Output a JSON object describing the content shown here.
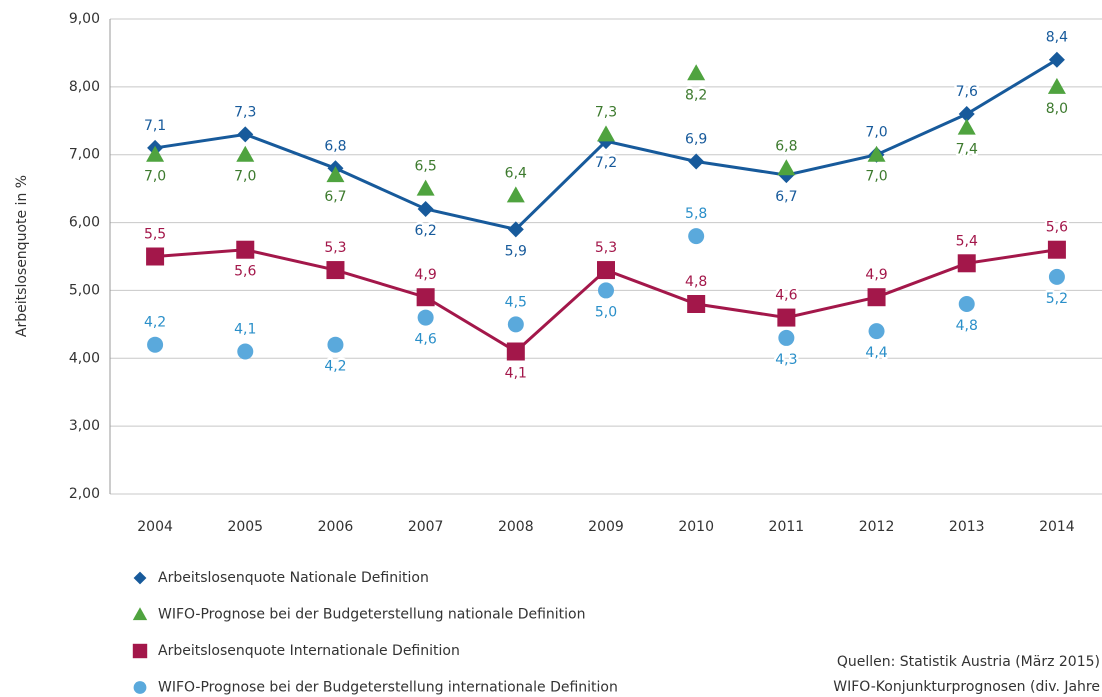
{
  "chart_data": {
    "type": "line",
    "y_label": "Arbeitslosenquote in %",
    "categories": [
      "2004",
      "2005",
      "2006",
      "2007",
      "2008",
      "2009",
      "2010",
      "2011",
      "2012",
      "2013",
      "2014"
    ],
    "ylim": [
      2,
      9
    ],
    "yticks": [
      {
        "value": 2,
        "label": "2,00"
      },
      {
        "value": 3,
        "label": "3,00"
      },
      {
        "value": 4,
        "label": "4,00"
      },
      {
        "value": 5,
        "label": "5,00"
      },
      {
        "value": 6,
        "label": "6,00"
      },
      {
        "value": 7,
        "label": "7,00"
      },
      {
        "value": 8,
        "label": "8,00"
      },
      {
        "value": 9,
        "label": "9,00"
      }
    ],
    "grid": true,
    "series": [
      {
        "name": "Arbeitslosenquote Nationale Definition",
        "color": "#175a9b",
        "label_color": "#175a9b",
        "marker": "diamond",
        "line": true,
        "values": [
          7.1,
          7.3,
          6.8,
          6.2,
          5.9,
          7.2,
          6.9,
          6.7,
          7.0,
          7.6,
          8.4
        ],
        "value_labels": [
          "7,1",
          "7,3",
          "6,8",
          "6,2",
          "5,9",
          "7,2",
          "6,9",
          "6,7",
          "7,0",
          "7,6",
          "8,4"
        ]
      },
      {
        "name": "WIFO-Prognose bei der Budgeterstellung nationale Definition",
        "color": "#4fa33f",
        "label_color": "#3d7a2e",
        "marker": "triangle",
        "line": false,
        "values": [
          7.0,
          7.0,
          6.7,
          6.5,
          6.4,
          7.3,
          8.2,
          6.8,
          7.0,
          7.4,
          8.0
        ],
        "value_labels": [
          "7,0",
          "7,0",
          "6,7",
          "6,5",
          "6,4",
          "7,3",
          "8,2",
          "6,8",
          "7,0",
          "7,4",
          "8,0"
        ]
      },
      {
        "name": "Arbeitslosenquote Internationale Definition",
        "color": "#a3174a",
        "label_color": "#a3174a",
        "marker": "square",
        "line": true,
        "values": [
          5.5,
          5.6,
          5.3,
          4.9,
          4.1,
          5.3,
          4.8,
          4.6,
          4.9,
          5.4,
          5.6
        ],
        "value_labels": [
          "5,5",
          "5,6",
          "5,3",
          "4,9",
          "4,1",
          "5,3",
          "4,8",
          "4,6",
          "4,9",
          "5,4",
          "5,6"
        ]
      },
      {
        "name": "WIFO-Prognose bei der Budgeterstellung internationale Definition",
        "color": "#5aa9dc",
        "label_color": "#2a8fc9",
        "marker": "circle",
        "line": false,
        "values": [
          4.2,
          4.1,
          4.2,
          4.6,
          4.5,
          5.0,
          5.8,
          4.3,
          4.4,
          4.8,
          5.2
        ],
        "value_labels": [
          "4,2",
          "4,1",
          "4,2",
          "4,6",
          "4,5",
          "5,0",
          "5,8",
          "4,3",
          "4,4",
          "4,8",
          "5,2"
        ]
      }
    ],
    "source": [
      "Quellen: Statistik Austria (März 2015)",
      "WIFO-Konjunkturprognosen (div. Jahre"
    ]
  }
}
